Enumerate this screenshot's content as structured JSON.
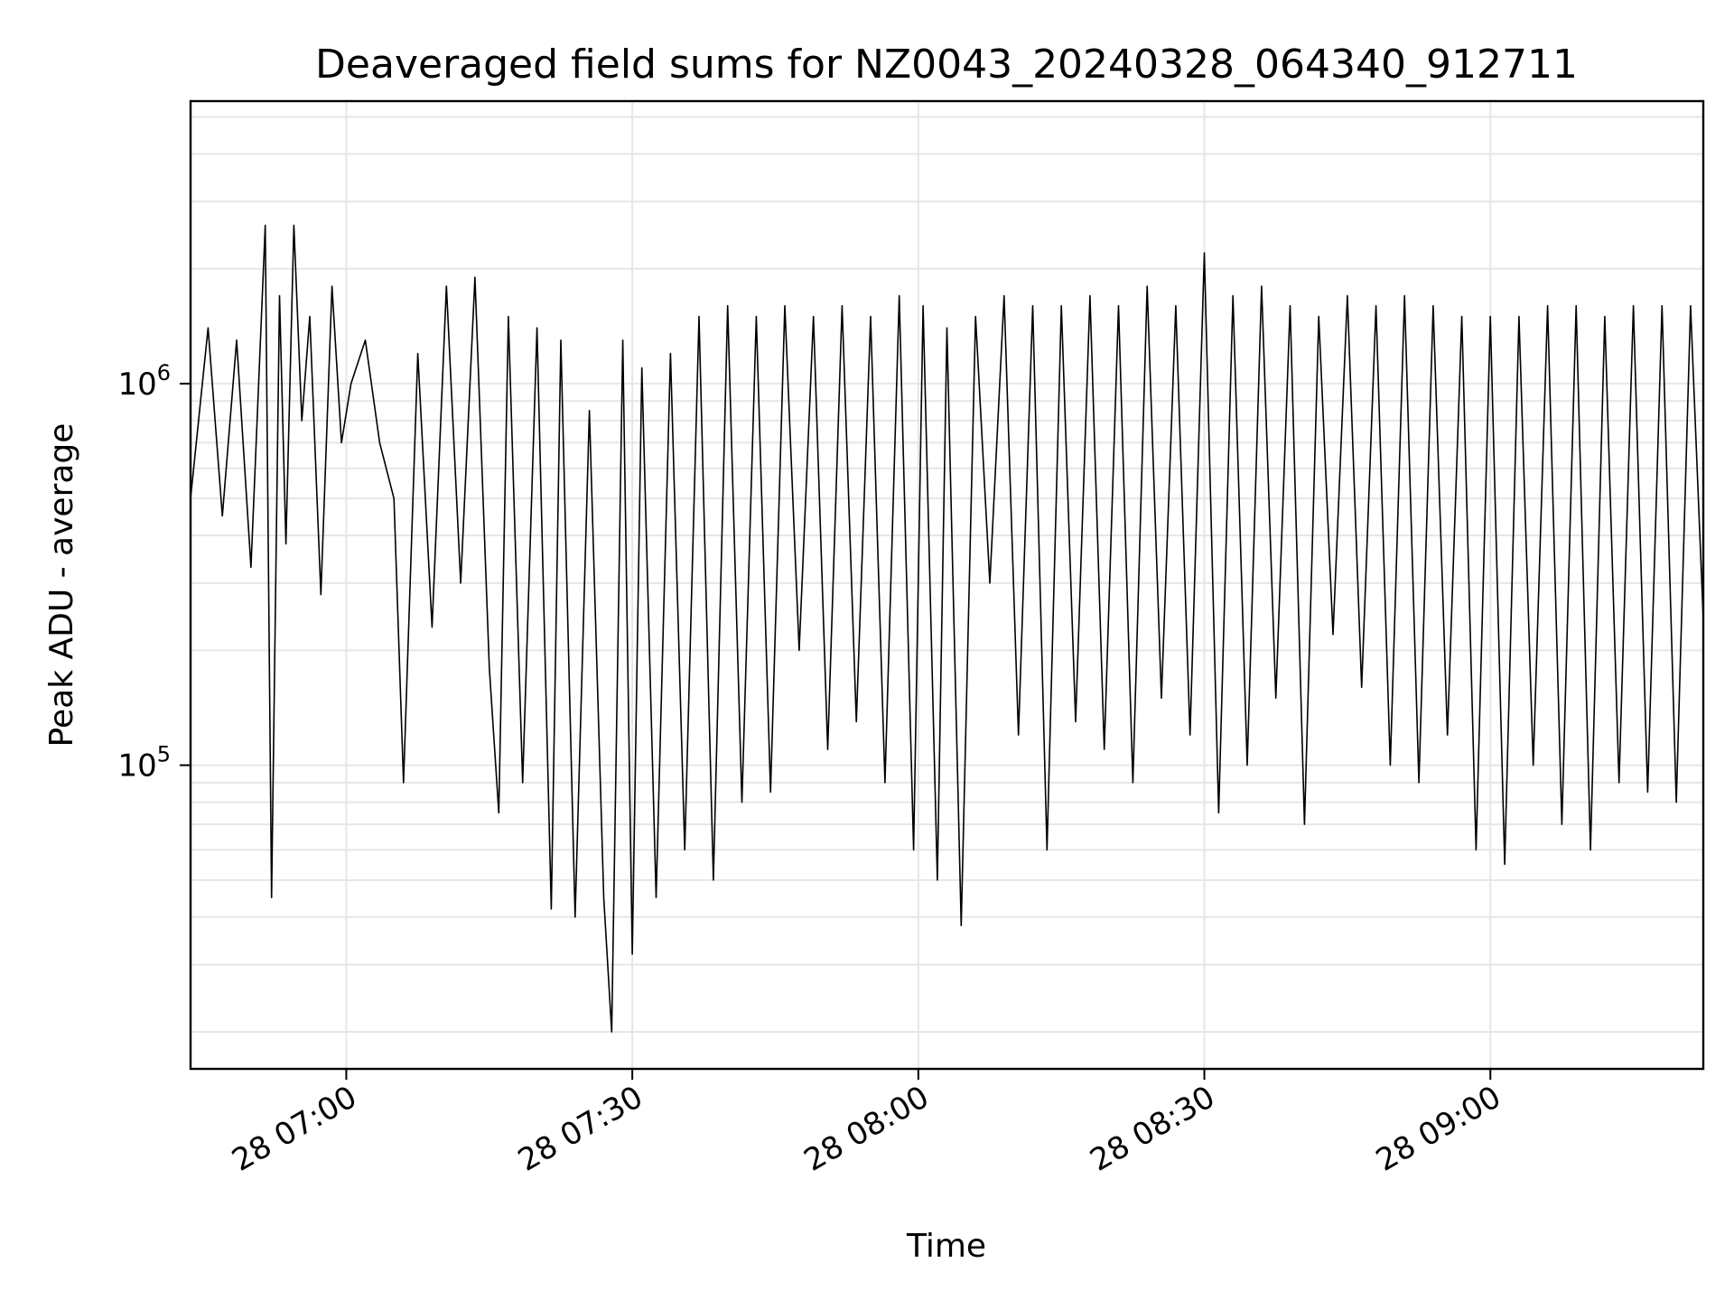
{
  "chart_data": {
    "type": "line",
    "title": "Deaveraged field sums for NZ0043_20240328_064340_912711",
    "xlabel": "Time",
    "ylabel": "Peak ADU - average",
    "yscale": "log",
    "ylim": [
      16000,
      5500000
    ],
    "xlim": [
      "2024-03-28 06:43:40",
      "2024-03-28 09:22:20"
    ],
    "grid": true,
    "line_color": "#000000",
    "x_ticks": [
      {
        "t": "2024-03-28 07:00:00",
        "label": "28 07:00"
      },
      {
        "t": "2024-03-28 07:30:00",
        "label": "28 07:30"
      },
      {
        "t": "2024-03-28 08:00:00",
        "label": "28 08:00"
      },
      {
        "t": "2024-03-28 08:30:00",
        "label": "28 08:30"
      },
      {
        "t": "2024-03-28 09:00:00",
        "label": "28 09:00"
      }
    ],
    "y_ticks": [
      {
        "value": 100000,
        "base": "10",
        "exp": "5"
      },
      {
        "value": 1000000,
        "base": "10",
        "exp": "6"
      }
    ],
    "series": [
      {
        "x": [
          "2024-03-28 06:43:40",
          "2024-03-28 06:45:30",
          "2024-03-28 06:47:00",
          "2024-03-28 06:48:30",
          "2024-03-28 06:50:00",
          "2024-03-28 06:51:30",
          "2024-03-28 06:52:10",
          "2024-03-28 06:53:00",
          "2024-03-28 06:53:40",
          "2024-03-28 06:54:30",
          "2024-03-28 06:55:20",
          "2024-03-28 06:56:10",
          "2024-03-28 06:57:20",
          "2024-03-28 06:58:30",
          "2024-03-28 06:59:30",
          "2024-03-28 07:00:30",
          "2024-03-28 07:02:00",
          "2024-03-28 07:03:30",
          "2024-03-28 07:05:00",
          "2024-03-28 07:06:00",
          "2024-03-28 07:07:30",
          "2024-03-28 07:09:00",
          "2024-03-28 07:10:30",
          "2024-03-28 07:12:00",
          "2024-03-28 07:13:30",
          "2024-03-28 07:15:00",
          "2024-03-28 07:16:00",
          "2024-03-28 07:17:00",
          "2024-03-28 07:18:30",
          "2024-03-28 07:20:00",
          "2024-03-28 07:21:30",
          "2024-03-28 07:22:30",
          "2024-03-28 07:24:00",
          "2024-03-28 07:25:30",
          "2024-03-28 07:27:00",
          "2024-03-28 07:27:50",
          "2024-03-28 07:29:00",
          "2024-03-28 07:30:00",
          "2024-03-28 07:31:00",
          "2024-03-28 07:32:30",
          "2024-03-28 07:34:00",
          "2024-03-28 07:35:30",
          "2024-03-28 07:37:00",
          "2024-03-28 07:38:30",
          "2024-03-28 07:40:00",
          "2024-03-28 07:41:30",
          "2024-03-28 07:43:00",
          "2024-03-28 07:44:30",
          "2024-03-28 07:46:00",
          "2024-03-28 07:47:30",
          "2024-03-28 07:49:00",
          "2024-03-28 07:50:30",
          "2024-03-28 07:52:00",
          "2024-03-28 07:53:30",
          "2024-03-28 07:55:00",
          "2024-03-28 07:56:30",
          "2024-03-28 07:58:00",
          "2024-03-28 07:59:30",
          "2024-03-28 08:00:30",
          "2024-03-28 08:02:00",
          "2024-03-28 08:03:00",
          "2024-03-28 08:04:30",
          "2024-03-28 08:06:00",
          "2024-03-28 08:07:30",
          "2024-03-28 08:09:00",
          "2024-03-28 08:10:30",
          "2024-03-28 08:12:00",
          "2024-03-28 08:13:30",
          "2024-03-28 08:15:00",
          "2024-03-28 08:16:30",
          "2024-03-28 08:18:00",
          "2024-03-28 08:19:30",
          "2024-03-28 08:21:00",
          "2024-03-28 08:22:30",
          "2024-03-28 08:24:00",
          "2024-03-28 08:25:30",
          "2024-03-28 08:27:00",
          "2024-03-28 08:28:30",
          "2024-03-28 08:30:00",
          "2024-03-28 08:31:30",
          "2024-03-28 08:33:00",
          "2024-03-28 08:34:30",
          "2024-03-28 08:36:00",
          "2024-03-28 08:37:30",
          "2024-03-28 08:39:00",
          "2024-03-28 08:40:30",
          "2024-03-28 08:42:00",
          "2024-03-28 08:43:30",
          "2024-03-28 08:45:00",
          "2024-03-28 08:46:30",
          "2024-03-28 08:48:00",
          "2024-03-28 08:49:30",
          "2024-03-28 08:51:00",
          "2024-03-28 08:52:30",
          "2024-03-28 08:54:00",
          "2024-03-28 08:55:30",
          "2024-03-28 08:57:00",
          "2024-03-28 08:58:30",
          "2024-03-28 09:00:00",
          "2024-03-28 09:01:30",
          "2024-03-28 09:03:00",
          "2024-03-28 09:04:30",
          "2024-03-28 09:06:00",
          "2024-03-28 09:07:30",
          "2024-03-28 09:09:00",
          "2024-03-28 09:10:30",
          "2024-03-28 09:12:00",
          "2024-03-28 09:13:30",
          "2024-03-28 09:15:00",
          "2024-03-28 09:16:30",
          "2024-03-28 09:18:00",
          "2024-03-28 09:19:30",
          "2024-03-28 09:21:00",
          "2024-03-28 09:22:20"
        ],
        "values": [
          500000,
          1400000,
          450000,
          1300000,
          330000,
          2600000,
          45000,
          1700000,
          380000,
          2600000,
          800000,
          1500000,
          280000,
          1800000,
          700000,
          1000000,
          1300000,
          700000,
          500000,
          90000,
          1200000,
          230000,
          1800000,
          300000,
          1900000,
          180000,
          75000,
          1500000,
          90000,
          1400000,
          42000,
          1300000,
          40000,
          850000,
          45000,
          20000,
          1300000,
          32000,
          1100000,
          45000,
          1200000,
          60000,
          1500000,
          50000,
          1600000,
          80000,
          1500000,
          85000,
          1600000,
          200000,
          1500000,
          110000,
          1600000,
          130000,
          1500000,
          90000,
          1700000,
          60000,
          1600000,
          50000,
          1400000,
          38000,
          1500000,
          300000,
          1700000,
          120000,
          1600000,
          60000,
          1600000,
          130000,
          1700000,
          110000,
          1600000,
          90000,
          1800000,
          150000,
          1600000,
          120000,
          2200000,
          75000,
          1700000,
          100000,
          1800000,
          150000,
          1600000,
          70000,
          1500000,
          220000,
          1700000,
          160000,
          1600000,
          100000,
          1700000,
          90000,
          1600000,
          120000,
          1500000,
          60000,
          1500000,
          55000,
          1500000,
          100000,
          1600000,
          70000,
          1600000,
          60000,
          1500000,
          90000,
          1600000,
          85000,
          1600000,
          80000,
          1600000,
          240000
        ]
      }
    ]
  }
}
